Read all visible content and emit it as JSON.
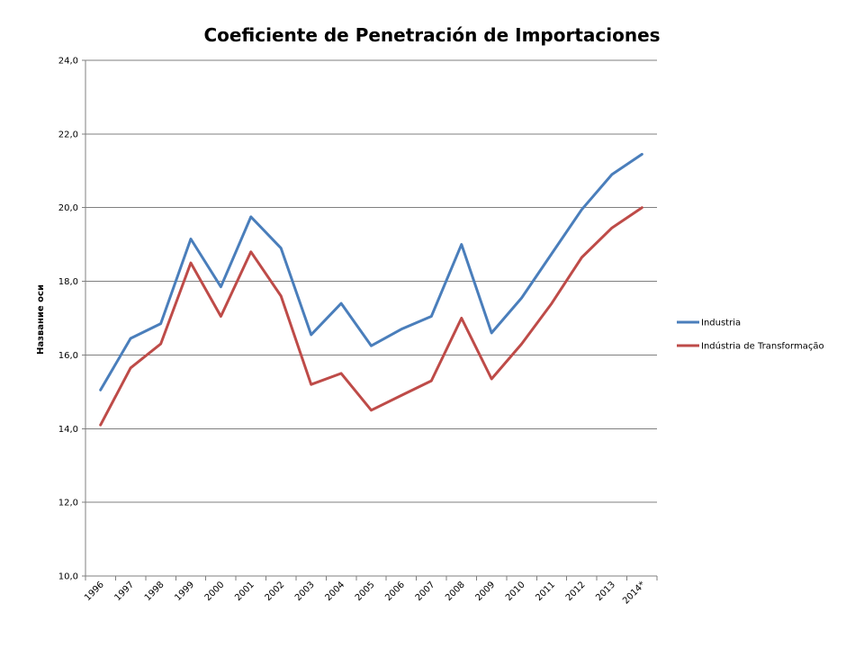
{
  "chart_data": {
    "type": "line",
    "title": "Coeficiente de Penetración de Importaciones",
    "ylabel": "Название оси",
    "xlabel": "",
    "categories": [
      "1996",
      "1997",
      "1998",
      "1999",
      "2000",
      "2001",
      "2002",
      "2003",
      "2004",
      "2005",
      "2006",
      "2007",
      "2008",
      "2009",
      "2010",
      "2011",
      "2012",
      "2013",
      "2014*"
    ],
    "ylim": [
      10.0,
      24.0
    ],
    "yticks": [
      "10,0",
      "12,0",
      "14,0",
      "16,0",
      "18,0",
      "20,0",
      "22,0",
      "24,0"
    ],
    "ytick_values": [
      10,
      12,
      14,
      16,
      18,
      20,
      22,
      24
    ],
    "grid": true,
    "legend_position": "right",
    "series": [
      {
        "name": "Industria",
        "color": "#4a7ebb",
        "values": [
          15.05,
          16.45,
          16.85,
          19.15,
          17.85,
          19.75,
          18.9,
          16.55,
          17.4,
          16.25,
          16.7,
          17.05,
          19.0,
          16.6,
          17.55,
          18.75,
          19.95,
          20.9,
          21.45
        ]
      },
      {
        "name": "Indústria de Transformação",
        "color": "#be4b48",
        "values": [
          14.1,
          15.65,
          16.3,
          18.5,
          17.05,
          18.8,
          17.6,
          15.2,
          15.5,
          14.5,
          14.9,
          15.3,
          17.0,
          15.35,
          16.3,
          17.4,
          18.65,
          19.45,
          20.0
        ]
      }
    ]
  }
}
